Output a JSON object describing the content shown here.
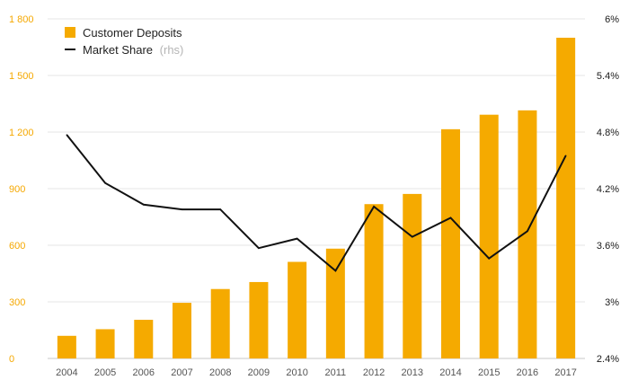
{
  "chart_data": {
    "type": "bar",
    "categories": [
      "2004",
      "2005",
      "2006",
      "2007",
      "2008",
      "2009",
      "2010",
      "2011",
      "2012",
      "2013",
      "2014",
      "2015",
      "2016",
      "2017"
    ],
    "series": [
      {
        "name": "Customer Deposits",
        "type": "bar",
        "axis": "left",
        "color": "#f5aa00",
        "values": [
          120,
          155,
          205,
          295,
          368,
          405,
          512,
          582,
          818,
          872,
          1215,
          1292,
          1315,
          1700
        ]
      },
      {
        "name": "Market Share",
        "legend_suffix": "(rhs)",
        "type": "line",
        "axis": "right",
        "color": "#111111",
        "values": [
          4.77,
          4.26,
          4.03,
          3.98,
          3.98,
          3.57,
          3.67,
          3.33,
          4.01,
          3.69,
          3.89,
          3.46,
          3.75,
          4.55
        ]
      }
    ],
    "y_left": {
      "lim": [
        0,
        1800
      ],
      "ticks": [
        0,
        300,
        600,
        900,
        1200,
        1500,
        1800
      ],
      "tick_labels": [
        "0",
        "300",
        "600",
        "900",
        "1 200",
        "1 500",
        "1 800"
      ],
      "color": "#f5a800"
    },
    "y_right": {
      "lim": [
        2.4,
        6.0
      ],
      "ticks": [
        2.4,
        3.0,
        3.6,
        4.2,
        4.8,
        5.4,
        6.0
      ],
      "tick_labels": [
        "2.4%",
        "3%",
        "3.6%",
        "4.2%",
        "4.8%",
        "5.4%",
        "6%"
      ],
      "color": "#1a1a1a"
    },
    "grid": true,
    "grid_color": "#e6e6e6",
    "legend_position": "top-left",
    "title": "",
    "xlabel": "",
    "ylabel": ""
  },
  "legend": {
    "deposits_label": "Customer Deposits",
    "market_share_label": "Market Share",
    "market_share_suffix": "(rhs)"
  }
}
